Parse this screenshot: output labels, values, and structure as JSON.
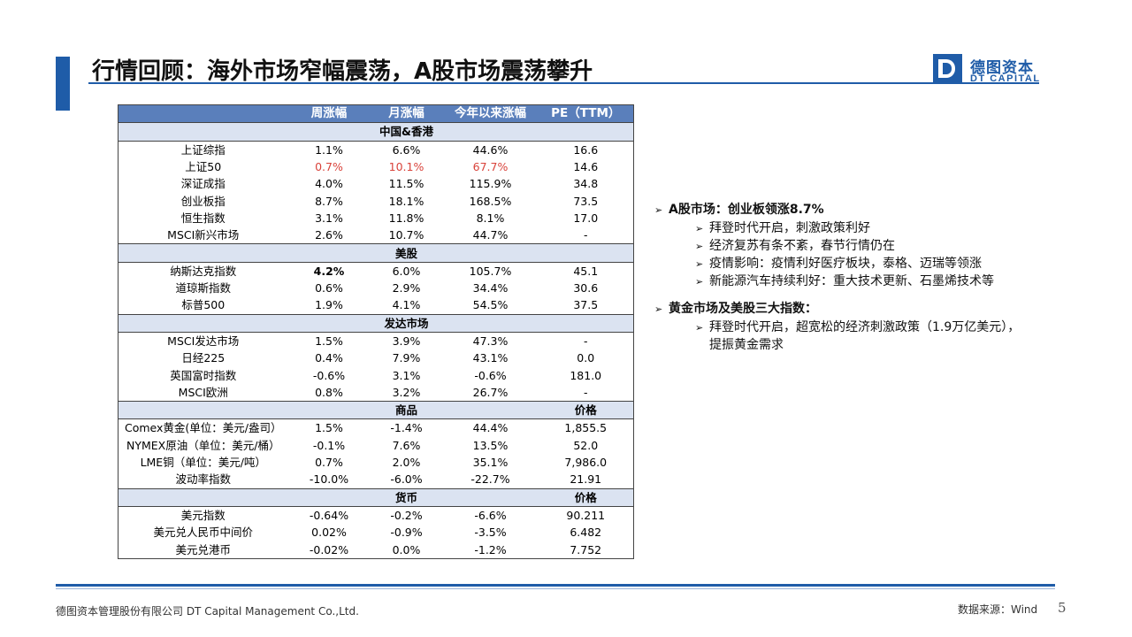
{
  "title": "行情回顾：海外市场窄幅震荡，A股市场震荡攀升",
  "logo": {
    "cn": "德图资本",
    "en": "DT CAPITAL",
    "colors": {
      "brand": "#1f5ca8"
    }
  },
  "table": {
    "header": [
      "",
      "周涨幅",
      "月涨幅",
      "今年以来涨幅",
      "PE（TTM）"
    ],
    "sections": [
      {
        "title": "中国&香港",
        "extra": "",
        "rows": [
          [
            "上证综指",
            "1.1%",
            "6.6%",
            "44.6%",
            "16.6"
          ],
          [
            "上证50",
            "0.7%",
            "10.1%",
            "67.7%",
            "14.6"
          ],
          [
            "深证成指",
            "4.0%",
            "11.5%",
            "115.9%",
            "34.8"
          ],
          [
            "创业板指",
            "8.7%",
            "18.1%",
            "168.5%",
            "73.5"
          ],
          [
            "恒生指数",
            "3.1%",
            "11.8%",
            "8.1%",
            "17.0"
          ],
          [
            "MSCI新兴市场",
            "2.6%",
            "10.7%",
            "44.7%",
            "-"
          ]
        ]
      },
      {
        "title": "美股",
        "extra": "",
        "rows": [
          [
            "纳斯达克指数",
            "4.2%",
            "6.0%",
            "105.7%",
            "45.1"
          ],
          [
            "道琼斯指数",
            "0.6%",
            "2.9%",
            "34.4%",
            "30.6"
          ],
          [
            "标普500",
            "1.9%",
            "4.1%",
            "54.5%",
            "37.5"
          ]
        ]
      },
      {
        "title": "发达市场",
        "extra": "",
        "rows": [
          [
            "MSCI发达市场",
            "1.5%",
            "3.9%",
            "47.3%",
            "-"
          ],
          [
            "日经225",
            "0.4%",
            "7.9%",
            "43.1%",
            "0.0"
          ],
          [
            "英国富时指数",
            "-0.6%",
            "3.1%",
            "-0.6%",
            "181.0"
          ],
          [
            "MSCI欧洲",
            "0.8%",
            "3.2%",
            "26.7%",
            "-"
          ]
        ]
      },
      {
        "title": "商品",
        "extra": "价格",
        "rows": [
          [
            "Comex黄金(单位：美元/盎司）",
            "1.5%",
            "-1.4%",
            "44.4%",
            "1,855.5"
          ],
          [
            "NYMEX原油（单位：美元/桶）",
            "-0.1%",
            "7.6%",
            "13.5%",
            "52.0"
          ],
          [
            "LME铜（单位：美元/吨）",
            "0.7%",
            "2.0%",
            "35.1%",
            "7,986.0"
          ],
          [
            "波动率指数",
            "-10.0%",
            "-6.0%",
            "-22.7%",
            "21.91"
          ]
        ]
      },
      {
        "title": "货币",
        "extra": "价格",
        "rows": [
          [
            "美元指数",
            "-0.64%",
            "-0.2%",
            "-6.6%",
            "90.211"
          ],
          [
            "美元兑人民币中间价",
            "0.02%",
            "-0.9%",
            "-3.5%",
            "6.482"
          ],
          [
            "美元兑港币",
            "-0.02%",
            "0.0%",
            "-1.2%",
            "7.752"
          ]
        ]
      }
    ],
    "highlight_red_color": "#d9433b"
  },
  "bullets": {
    "a_share_title": "A股市场：创业板领涨8.7%",
    "a_share_items": [
      "拜登时代开启，刺激政策利好",
      "经济复苏有条不紊，春节行情仍在",
      "疫情影响：疫情利好医疗板块，泰格、迈瑞等领涨",
      "新能源汽车持续利好：重大技术更新、石墨烯技术等"
    ],
    "gold_title": "黄金市场及美股三大指数：",
    "gold_item_line1": "拜登时代开启，超宽松的经济刺激政策（1.9万亿美元），",
    "gold_item_line2": "提振黄金需求"
  },
  "footer": {
    "company": "德图资本管理股份有限公司  DT Capital  Management  Co.,Ltd.",
    "source": "数据来源：Wind",
    "page": "5"
  }
}
